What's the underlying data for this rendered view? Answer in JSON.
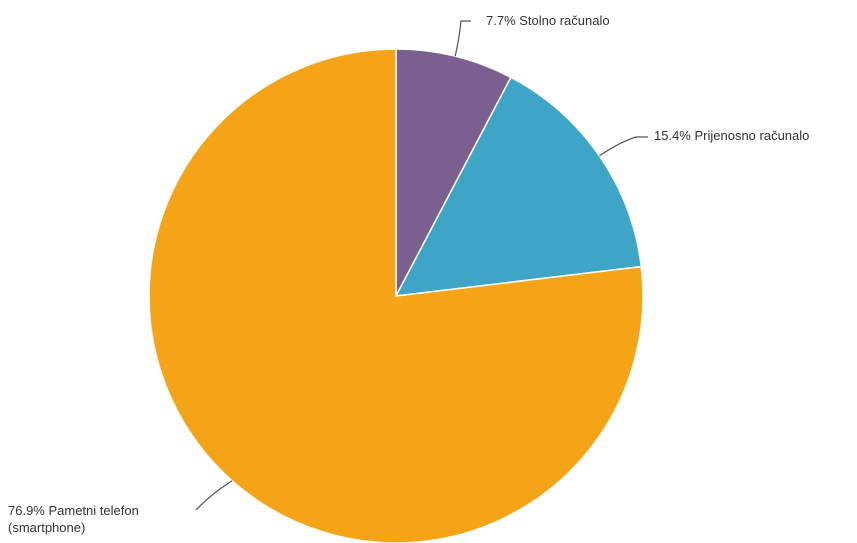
{
  "chart_data": {
    "type": "pie",
    "slices": [
      {
        "label": "Stolno računalo",
        "value": 7.7,
        "percent_label": "7.7%",
        "color": "#7b5f91"
      },
      {
        "label": "Prijenosno računalo",
        "value": 15.4,
        "percent_label": "15.4%",
        "color": "#3ea5c6"
      },
      {
        "label": "Pametni telefon (smartphone)",
        "label_lines": [
          "Pametni telefon",
          "(smartphone)"
        ],
        "value": 76.9,
        "percent_label": "76.9%",
        "color": "#f4a416"
      }
    ],
    "start_angle": "top",
    "direction": "clockwise",
    "legend": "none"
  }
}
